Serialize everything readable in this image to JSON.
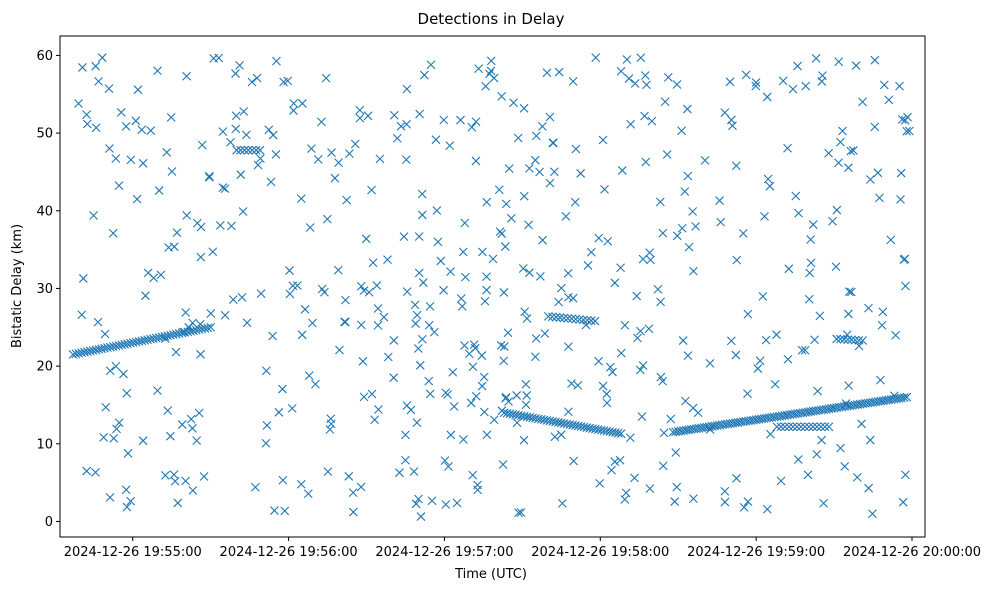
{
  "chart_data": {
    "type": "scatter",
    "title": "Detections in Delay",
    "xlabel": "Time (UTC)",
    "ylabel": "Bistatic Delay (km)",
    "xlim_seconds": [
      -28,
      305
    ],
    "ylim": [
      -2,
      62.5
    ],
    "x_ticks": [
      {
        "t": 0,
        "label": "2024-12-26 19:55:00"
      },
      {
        "t": 60,
        "label": "2024-12-26 19:56:00"
      },
      {
        "t": 120,
        "label": "2024-12-26 19:57:00"
      },
      {
        "t": 180,
        "label": "2024-12-26 19:58:00"
      },
      {
        "t": 240,
        "label": "2024-12-26 19:59:00"
      },
      {
        "t": 300,
        "label": "2024-12-26 20:00:00"
      }
    ],
    "y_ticks": [
      0,
      10,
      20,
      30,
      40,
      50,
      60
    ],
    "x_reference": "2024-12-26 19:55:00 UTC (x values are seconds after this time)",
    "marker": "x",
    "color": "#1f77b4",
    "series": [
      {
        "name": "detections",
        "tracks": [
          {
            "t_start": -23,
            "t_end": 30,
            "y_start": 21.5,
            "y_end": 25.0,
            "step": 1.1
          },
          {
            "t_start": 143,
            "t_end": 188,
            "y_start": 14.0,
            "y_end": 11.3,
            "step": 1.1
          },
          {
            "t_start": 208,
            "t_end": 298,
            "y_start": 11.5,
            "y_end": 16.0,
            "step": 1.0
          },
          {
            "t_start": 160,
            "t_end": 178,
            "y_start": 26.4,
            "y_end": 25.8,
            "step": 1.5
          },
          {
            "t_start": 248,
            "t_end": 268,
            "y_start": 12.2,
            "y_end": 12.2,
            "step": 1.5
          },
          {
            "t_start": 40,
            "t_end": 49,
            "y_start": 47.8,
            "y_end": 47.8,
            "step": 1.5
          },
          {
            "t_start": 271,
            "t_end": 281,
            "y_start": 23.5,
            "y_end": 23.3,
            "step": 1.5
          }
        ],
        "clutter": {
          "count": 560,
          "t_min": -22,
          "t_max": 299,
          "y_min": 0.5,
          "y_max": 59.8,
          "seed": 20241226
        }
      }
    ]
  }
}
